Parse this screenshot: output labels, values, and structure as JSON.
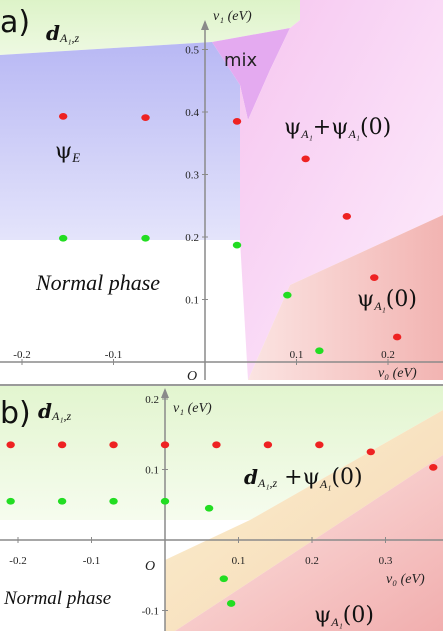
{
  "chart_data": [
    {
      "panel": "a)",
      "type": "scatter",
      "xlabel": "v₀ (eV)",
      "ylabel": "v₁ (eV)",
      "origin_label": "O",
      "xlim": [
        -0.23,
        0.26
      ],
      "ylim": [
        -0.04,
        0.54
      ],
      "x_ticks": [
        "-0.2",
        "-0.1",
        "0.1",
        "0.2"
      ],
      "y_ticks": [
        "0.1",
        "0.2",
        "0.3",
        "0.4",
        "0.5"
      ],
      "regions": [
        "d_{A1,z}",
        "mix",
        "ψ_E",
        "ψ_{A1}+ψ_{A1}(0)",
        "Normal phase",
        "ψ_{A1}(0)"
      ],
      "series": [
        {
          "color": "#ee2222",
          "points": [
            [
              -0.155,
              0.393
            ],
            [
              -0.065,
              0.391
            ],
            [
              0.035,
              0.385
            ],
            [
              0.11,
              0.325
            ],
            [
              0.155,
              0.233
            ],
            [
              0.185,
              0.135
            ],
            [
              0.21,
              0.04
            ]
          ]
        },
        {
          "color": "#22dd22",
          "points": [
            [
              -0.155,
              0.198
            ],
            [
              -0.065,
              0.198
            ],
            [
              0.035,
              0.187
            ],
            [
              0.09,
              0.107
            ],
            [
              0.125,
              0.018
            ]
          ]
        }
      ]
    },
    {
      "panel": "b)",
      "type": "scatter",
      "xlabel": "v₀ (eV)",
      "ylabel": "v₁ (eV)",
      "origin_label": "O",
      "xlim": [
        -0.215,
        0.38
      ],
      "ylim": [
        -0.11,
        0.2
      ],
      "x_ticks": [
        "-0.2",
        "-0.1",
        "0.1",
        "0.2",
        "0.3"
      ],
      "y_ticks": [
        "0.2",
        "0.1",
        "-0.1"
      ],
      "regions": [
        "d_{A1,z}",
        "d_{A1,z} +ψ_{A1}(0)",
        "Normal phase",
        "ψ_{A1}(0)"
      ],
      "series": [
        {
          "color": "#ee2222",
          "points": [
            [
              -0.21,
              0.135
            ],
            [
              -0.14,
              0.135
            ],
            [
              -0.07,
              0.135
            ],
            [
              0,
              0.135
            ],
            [
              0.07,
              0.135
            ],
            [
              0.14,
              0.135
            ],
            [
              0.21,
              0.135
            ],
            [
              0.28,
              0.125
            ],
            [
              0.365,
              0.103
            ]
          ]
        },
        {
          "color": "#22dd22",
          "points": [
            [
              -0.21,
              0.055
            ],
            [
              -0.14,
              0.055
            ],
            [
              -0.07,
              0.055
            ],
            [
              0,
              0.055
            ],
            [
              0.06,
              0.045
            ],
            [
              0.08,
              -0.055
            ],
            [
              0.09,
              -0.09
            ]
          ]
        }
      ]
    }
  ]
}
